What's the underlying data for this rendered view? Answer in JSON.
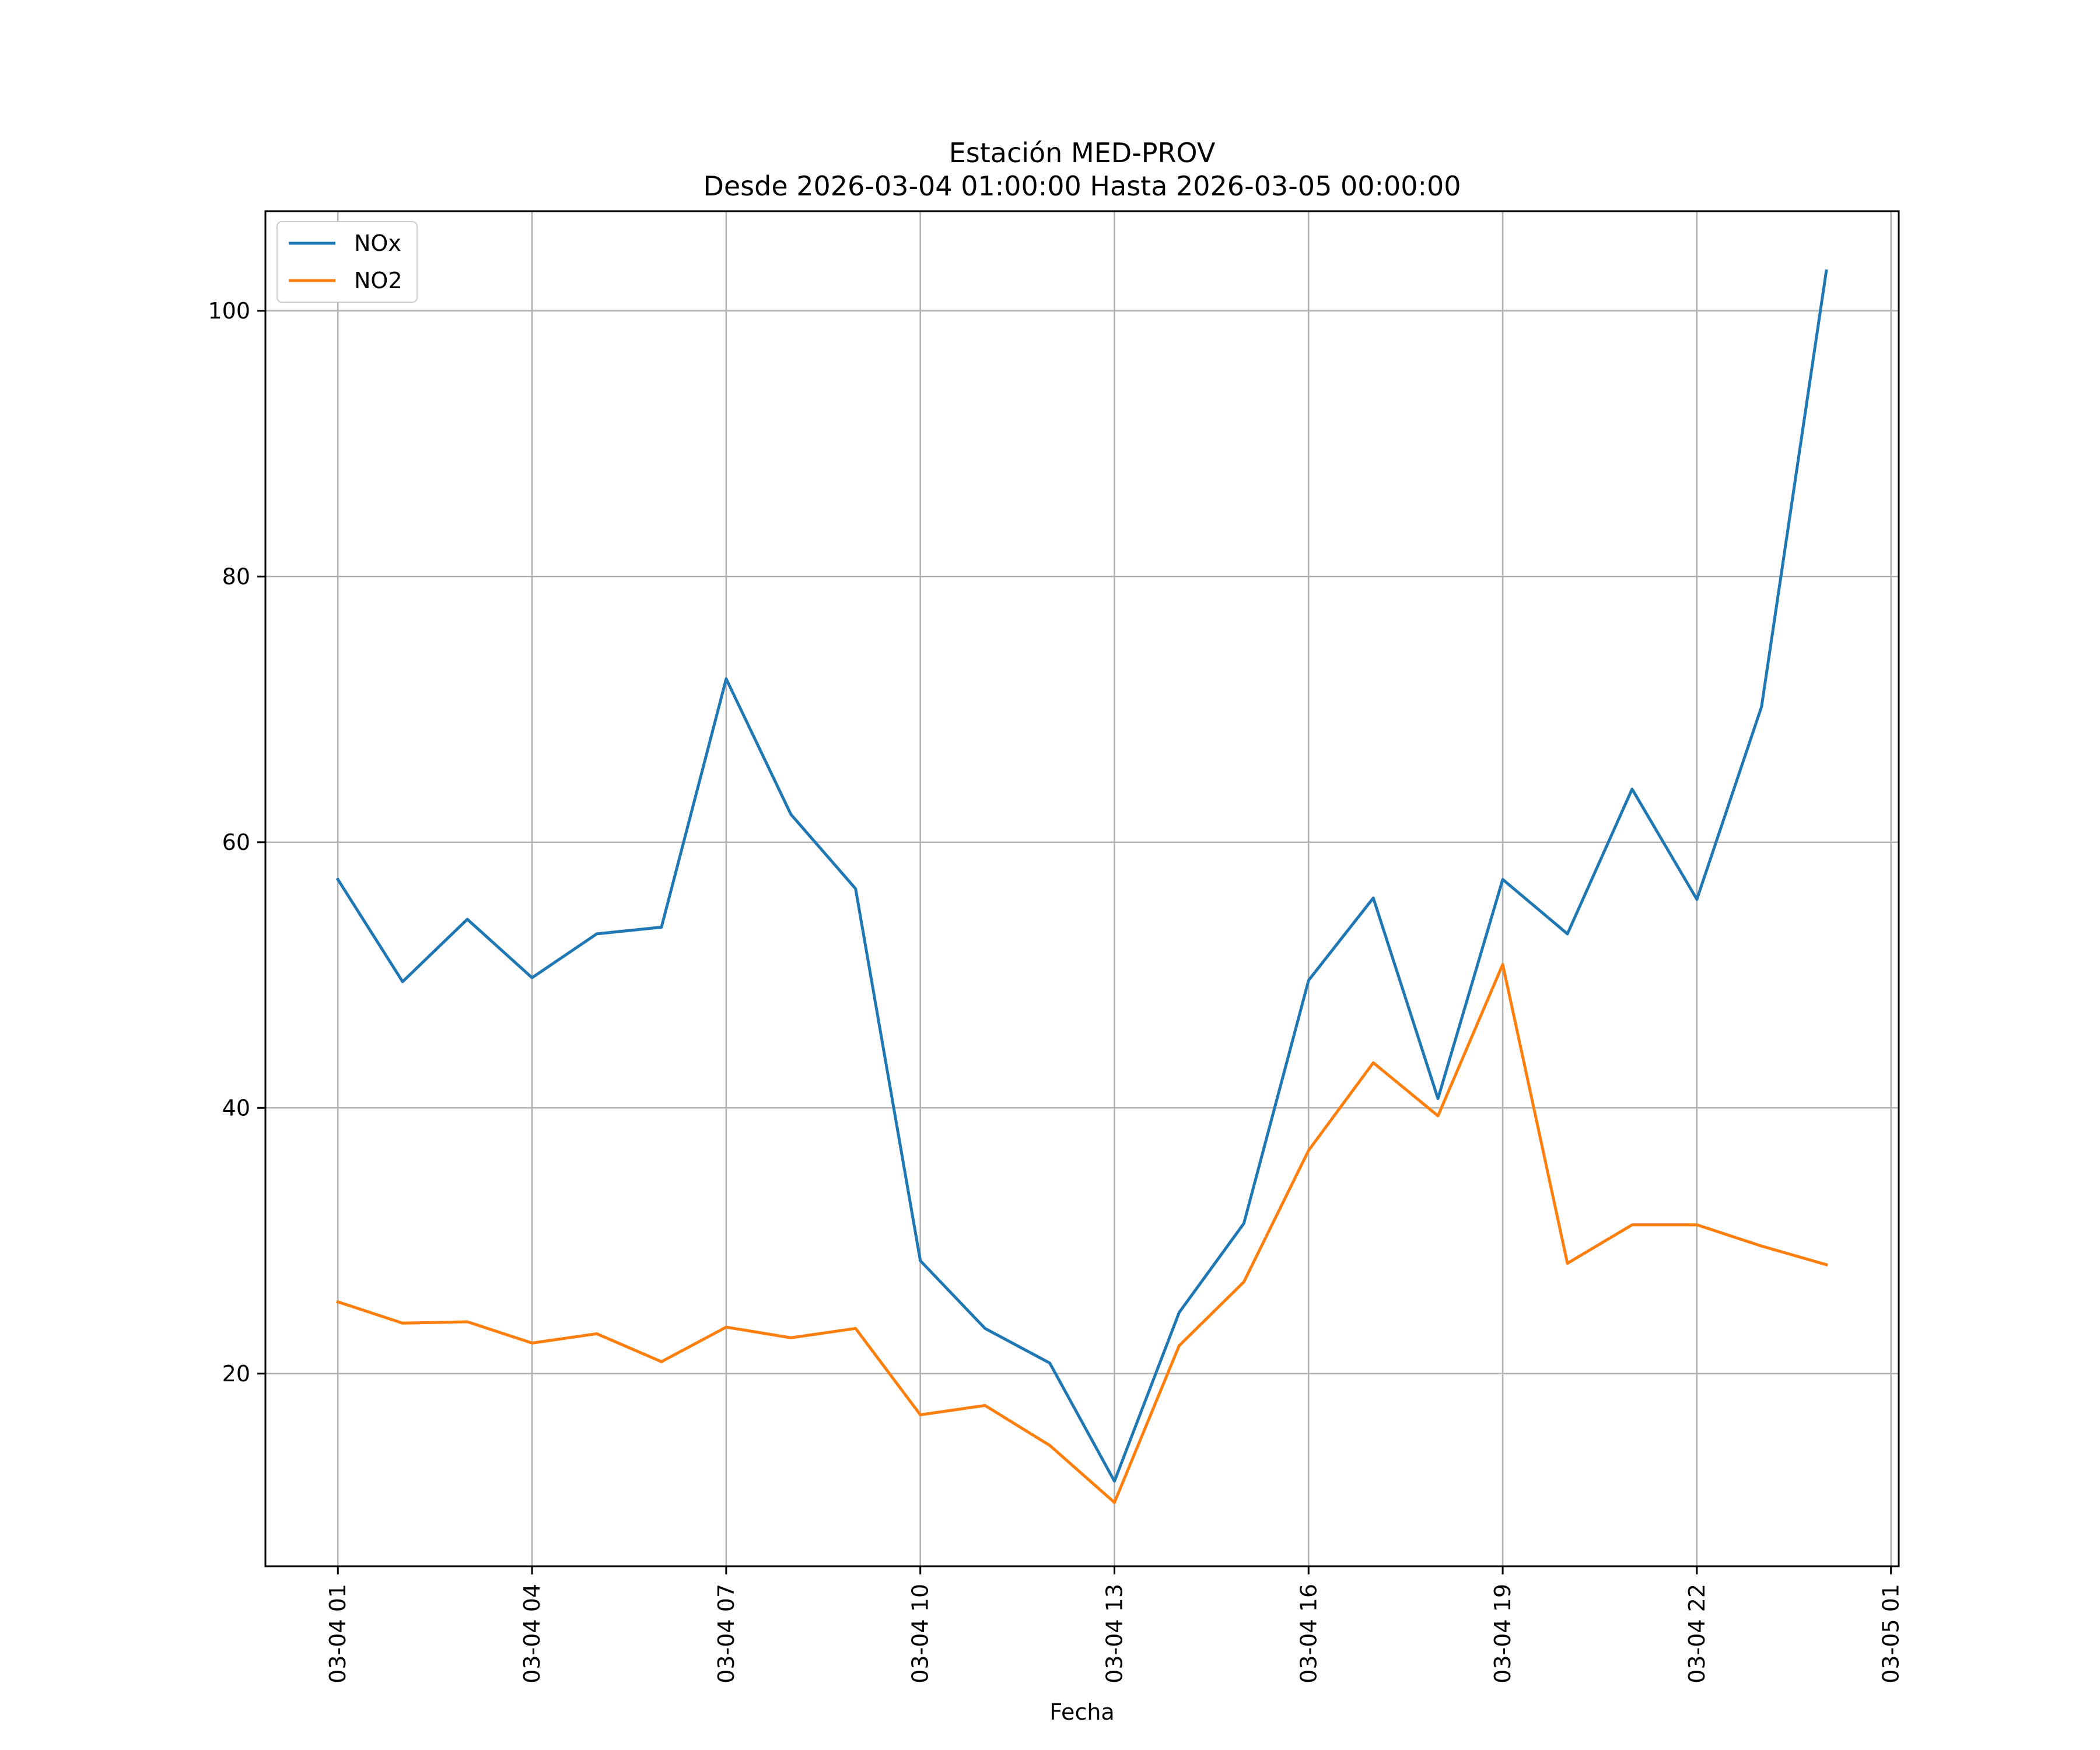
{
  "chart_data": {
    "type": "line",
    "title": "Estación MED-PROV",
    "subtitle": "Desde 2026-03-04 01:00:00 Hasta 2026-03-05 00:00:00",
    "xlabel": "Fecha",
    "ylabel": "",
    "x": [
      "03-04 01",
      "03-04 02",
      "03-04 03",
      "03-04 04",
      "03-04 05",
      "03-04 06",
      "03-04 07",
      "03-04 08",
      "03-04 09",
      "03-04 10",
      "03-04 11",
      "03-04 12",
      "03-04 13",
      "03-04 14",
      "03-04 15",
      "03-04 16",
      "03-04 17",
      "03-04 18",
      "03-04 19",
      "03-04 20",
      "03-04 21",
      "03-04 22",
      "03-04 23",
      "03-05 00"
    ],
    "xticks": [
      "03-04 01",
      "03-04 04",
      "03-04 07",
      "03-04 10",
      "03-04 13",
      "03-04 16",
      "03-04 19",
      "03-04 22",
      "03-05 01"
    ],
    "xlim_hours": [
      -1.12,
      24.12
    ],
    "ylim": [
      5.5,
      107.5
    ],
    "yticks": [
      20,
      40,
      60,
      80,
      100
    ],
    "grid": true,
    "legend_position": "top-left",
    "series": [
      {
        "name": "NOx",
        "color": "#1f77b4",
        "values": [
          57.2,
          49.5,
          54.2,
          49.8,
          53.1,
          53.6,
          72.3,
          62.1,
          56.5,
          28.5,
          23.4,
          20.8,
          11.9,
          24.6,
          31.3,
          49.6,
          55.8,
          40.7,
          57.2,
          53.1,
          64.0,
          55.7,
          70.2,
          103.0
        ]
      },
      {
        "name": "NO2",
        "color": "#ff7f0e",
        "values": [
          25.4,
          23.8,
          23.9,
          22.3,
          23.0,
          20.9,
          23.5,
          22.7,
          23.4,
          16.9,
          17.6,
          14.6,
          10.3,
          22.1,
          26.9,
          36.8,
          43.4,
          39.4,
          50.8,
          28.3,
          31.2,
          31.2,
          29.6,
          28.2
        ]
      }
    ]
  }
}
